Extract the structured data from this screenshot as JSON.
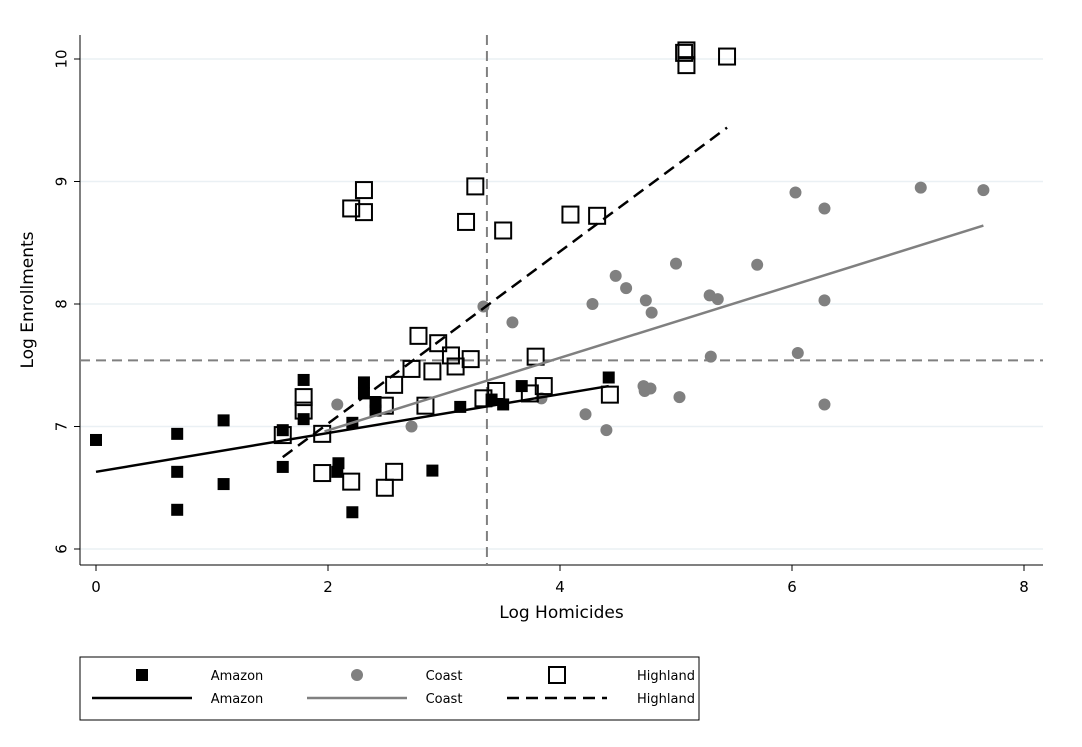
{
  "chart_data": {
    "type": "scatter",
    "xlabel": "Log Homicides",
    "ylabel": "Log Enrollments",
    "xlim": [
      0,
      8
    ],
    "ylim": [
      6,
      10
    ],
    "xticks": [
      "0",
      "2",
      "4",
      "6",
      "8"
    ],
    "yticks": [
      "6",
      "7",
      "8",
      "9",
      "10"
    ],
    "grid": true,
    "legend_position": "bottom",
    "reference_lines": {
      "x": 3.37,
      "y": 7.54
    },
    "series": [
      {
        "name": "Amazon",
        "kind": "points",
        "marker": "filled-square",
        "color": "#000000",
        "points": [
          [
            0,
            6.89
          ],
          [
            0.7,
            6.94
          ],
          [
            0.7,
            6.63
          ],
          [
            0.7,
            6.32
          ],
          [
            1.1,
            7.05
          ],
          [
            1.1,
            6.53
          ],
          [
            1.61,
            6.97
          ],
          [
            1.61,
            6.67
          ],
          [
            1.79,
            7.38
          ],
          [
            1.79,
            7.06
          ],
          [
            2.09,
            6.7
          ],
          [
            2.08,
            6.63
          ],
          [
            2.21,
            7.03
          ],
          [
            2.21,
            6.3
          ],
          [
            2.31,
            7.36
          ],
          [
            2.31,
            7.27
          ],
          [
            2.41,
            7.2
          ],
          [
            2.41,
            7.13
          ],
          [
            2.9,
            6.64
          ],
          [
            3.14,
            7.16
          ],
          [
            3.41,
            7.22
          ],
          [
            3.51,
            7.18
          ],
          [
            3.67,
            7.33
          ],
          [
            4.42,
            7.4
          ]
        ]
      },
      {
        "name": "Coast",
        "kind": "points",
        "marker": "circle",
        "color": "#808080",
        "points": [
          [
            2.08,
            7.18
          ],
          [
            2.72,
            7.0
          ],
          [
            3.34,
            7.98
          ],
          [
            3.59,
            7.85
          ],
          [
            3.84,
            7.23
          ],
          [
            4.22,
            7.1
          ],
          [
            4.28,
            8.0
          ],
          [
            4.4,
            6.97
          ],
          [
            4.48,
            8.23
          ],
          [
            4.57,
            8.13
          ],
          [
            4.74,
            8.03
          ],
          [
            4.79,
            7.93
          ],
          [
            4.72,
            7.33
          ],
          [
            4.73,
            7.29
          ],
          [
            4.78,
            7.31
          ],
          [
            5.0,
            8.33
          ],
          [
            5.03,
            7.24
          ],
          [
            5.29,
            8.07
          ],
          [
            5.36,
            8.04
          ],
          [
            5.3,
            7.57
          ],
          [
            5.7,
            8.32
          ],
          [
            6.03,
            8.91
          ],
          [
            6.05,
            7.6
          ],
          [
            6.28,
            8.78
          ],
          [
            6.28,
            8.03
          ],
          [
            6.28,
            7.18
          ],
          [
            7.11,
            8.95
          ],
          [
            7.65,
            8.93
          ]
        ]
      },
      {
        "name": "Highland",
        "kind": "points",
        "marker": "hollow-square",
        "color": "#000000",
        "points": [
          [
            1.79,
            7.24
          ],
          [
            1.79,
            7.13
          ],
          [
            1.61,
            6.93
          ],
          [
            1.95,
            6.94
          ],
          [
            1.95,
            6.62
          ],
          [
            2.2,
            6.55
          ],
          [
            2.2,
            8.78
          ],
          [
            2.31,
            8.93
          ],
          [
            2.31,
            8.75
          ],
          [
            2.49,
            6.5
          ],
          [
            2.57,
            6.63
          ],
          [
            2.57,
            7.34
          ],
          [
            2.49,
            7.17
          ],
          [
            2.72,
            7.47
          ],
          [
            2.78,
            7.74
          ],
          [
            2.84,
            7.17
          ],
          [
            2.9,
            7.45
          ],
          [
            2.95,
            7.68
          ],
          [
            3.06,
            7.58
          ],
          [
            3.1,
            7.49
          ],
          [
            3.23,
            7.55
          ],
          [
            3.19,
            8.67
          ],
          [
            3.27,
            8.96
          ],
          [
            3.34,
            7.23
          ],
          [
            3.45,
            7.29
          ],
          [
            3.51,
            8.6
          ],
          [
            3.79,
            7.57
          ],
          [
            3.86,
            7.33
          ],
          [
            3.74,
            7.27
          ],
          [
            4.09,
            8.73
          ],
          [
            4.32,
            8.72
          ],
          [
            4.43,
            7.26
          ],
          [
            5.09,
            10.07
          ],
          [
            5.09,
            9.95
          ],
          [
            5.07,
            10.05
          ],
          [
            5.44,
            10.02
          ]
        ]
      },
      {
        "name": "Amazon",
        "kind": "fit",
        "style": "solid",
        "color": "#000000",
        "points": [
          [
            0,
            6.63
          ],
          [
            4.42,
            7.33
          ]
        ]
      },
      {
        "name": "Coast",
        "kind": "fit",
        "style": "solid",
        "color": "#808080",
        "points": [
          [
            1.97,
            6.96
          ],
          [
            7.65,
            8.64
          ]
        ]
      },
      {
        "name": "Highland",
        "kind": "fit",
        "style": "dashed",
        "color": "#000000",
        "points": [
          [
            1.61,
            6.75
          ],
          [
            5.44,
            9.44
          ]
        ]
      }
    ]
  }
}
